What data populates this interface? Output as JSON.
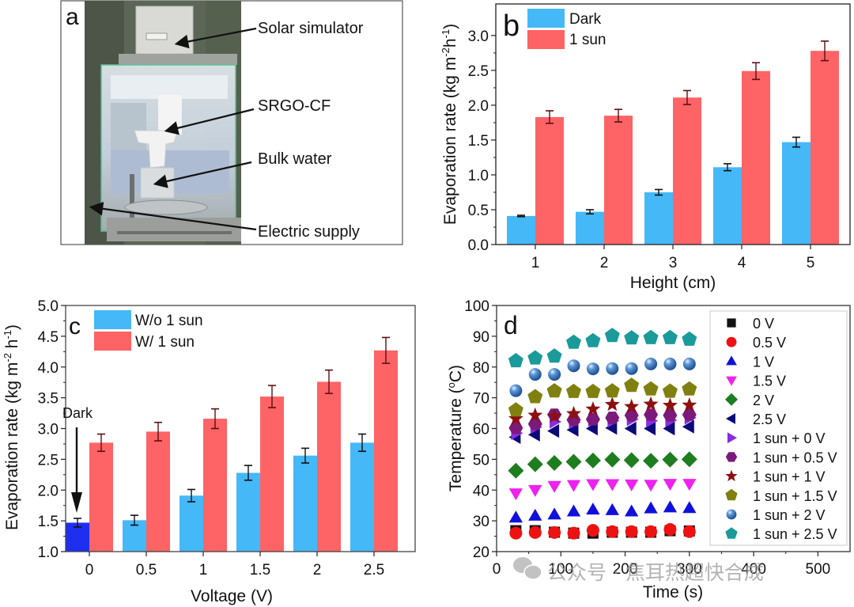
{
  "figure": {
    "watermark_text": "公众号 · 焦耳热超快合成",
    "watermark_icon": "wechat-icon"
  },
  "panel_a": {
    "panel_label": "a",
    "type": "photo",
    "annotations": [
      "Solar simulator",
      "SRGO-CF",
      "Bulk water",
      "Electric supply"
    ]
  },
  "chart_data": [
    {
      "panel_label": "b",
      "type": "bar",
      "title": "",
      "xlabel": "Height (cm)",
      "ylabel": "Evaporation rate (kg m⁻²h⁻¹)",
      "ylabel_parts": {
        "base": "Evaporation rate (kg m",
        "sup1": "-2",
        "mid": "h",
        "sup2": "-1",
        "end": ")"
      },
      "categories": [
        "1",
        "2",
        "3",
        "4",
        "5"
      ],
      "ylim": [
        0,
        3.2
      ],
      "yticks": [
        0.0,
        0.5,
        1.0,
        1.5,
        2.0,
        2.5,
        3.0
      ],
      "ytick_labels": [
        "0.0",
        "0.5",
        "1.0",
        "1.5",
        "2.0",
        "2.5",
        "3.0"
      ],
      "legend_position": "top-left",
      "grid": false,
      "series": [
        {
          "name": "Dark",
          "color": "#45b8f8",
          "values": [
            0.41,
            0.47,
            0.75,
            1.11,
            1.47
          ],
          "errors": [
            0.01,
            0.03,
            0.04,
            0.05,
            0.07
          ]
        },
        {
          "name": "1 sun",
          "color": "#fe6366",
          "values": [
            1.83,
            1.85,
            2.11,
            2.49,
            2.78
          ],
          "errors": [
            0.09,
            0.09,
            0.1,
            0.12,
            0.14
          ]
        }
      ]
    },
    {
      "panel_label": "c",
      "type": "bar",
      "title": "",
      "xlabel": "Voltage (V)",
      "ylabel": "Evaporation rate (kg m⁻² h⁻¹)",
      "ylabel_parts": {
        "base": "Evaporation rate (kg m",
        "sup1": "-2",
        "mid": " h",
        "sup2": "-1",
        "end": ")"
      },
      "categories": [
        "0",
        "0.5",
        "1",
        "1.5",
        "2",
        "2.5"
      ],
      "ylim": [
        1.0,
        5.0
      ],
      "yticks": [
        1.0,
        1.5,
        2.0,
        2.5,
        3.0,
        3.5,
        4.0,
        4.5,
        5.0
      ],
      "ytick_labels": [
        "1.0",
        "1.5",
        "2.0",
        "2.5",
        "3.0",
        "3.5",
        "4.0",
        "4.5",
        "5.0"
      ],
      "legend_position": "top-left",
      "grid": false,
      "annotation": {
        "text": "Dark",
        "points_to": "0",
        "highlight_color": "#1f2ff0"
      },
      "series": [
        {
          "name": "W/o 1 sun",
          "color": "#45b8f8",
          "values": [
            1.47,
            1.51,
            1.91,
            2.28,
            2.56,
            2.77
          ],
          "errors": [
            0.07,
            0.08,
            0.1,
            0.12,
            0.12,
            0.14
          ]
        },
        {
          "name": "W/ 1 sun",
          "color": "#fe6366",
          "values": [
            2.77,
            2.95,
            3.16,
            3.52,
            3.76,
            4.27
          ],
          "errors": [
            0.14,
            0.15,
            0.16,
            0.18,
            0.19,
            0.21
          ]
        }
      ]
    },
    {
      "panel_label": "d",
      "type": "scatter",
      "title": "",
      "xlabel": "Time (s)",
      "ylabel": "Temperature (°C)",
      "ylabel_parts": {
        "base": "Temperature (",
        "sup1": "o",
        "end": "C)"
      },
      "xlim": [
        0,
        550
      ],
      "ylim": [
        20,
        100
      ],
      "xticks": [
        0,
        100,
        200,
        300,
        400,
        500
      ],
      "xtick_labels": [
        "0",
        "100",
        "200",
        "300",
        "400",
        "500"
      ],
      "yticks": [
        20,
        30,
        40,
        50,
        60,
        70,
        80,
        90,
        100
      ],
      "ytick_labels": [
        "20",
        "30",
        "40",
        "50",
        "60",
        "70",
        "80",
        "90",
        "100"
      ],
      "legend_position": "right",
      "grid": false,
      "x": [
        30,
        60,
        90,
        120,
        150,
        180,
        210,
        240,
        270,
        300
      ],
      "series": [
        {
          "name": "0 V",
          "marker": "square",
          "color": "#111111",
          "values": [
            26.8,
            26.8,
            26.3,
            26.0,
            26.0,
            26.3,
            26.3,
            26.3,
            26.8,
            26.7
          ]
        },
        {
          "name": "0.5 V",
          "marker": "circle",
          "color": "#ee1111",
          "values": [
            26.0,
            26.2,
            26.2,
            26.0,
            26.9,
            26.5,
            26.5,
            26.5,
            27.2,
            26.5
          ]
        },
        {
          "name": "1 V",
          "marker": "triangle-up",
          "color": "#1010dd",
          "values": [
            31.0,
            31.6,
            32.0,
            33.0,
            33.6,
            33.4,
            33.0,
            34.0,
            34.3,
            34.1
          ]
        },
        {
          "name": "1.5 V",
          "marker": "triangle-down",
          "color": "#ee22ee",
          "values": [
            39.0,
            40.1,
            41.4,
            41.7,
            42.0,
            42.0,
            41.9,
            41.8,
            42.1,
            42.1
          ]
        },
        {
          "name": "2 V",
          "marker": "diamond",
          "color": "#1e7d1e",
          "values": [
            46.3,
            48.4,
            48.8,
            49.2,
            49.6,
            49.9,
            49.7,
            49.5,
            49.9,
            50.0
          ]
        },
        {
          "name": "2.5 V",
          "marker": "triangle-left",
          "color": "#0a0a7a",
          "values": [
            57.2,
            58.0,
            59.2,
            59.6,
            60.0,
            60.2,
            60.0,
            60.0,
            60.0,
            60.6
          ]
        },
        {
          "name": "1 sun + 0 V",
          "marker": "triangle-right",
          "color": "#8a2be2",
          "values": [
            58.5,
            60.5,
            62.2,
            62.0,
            62.8,
            62.5,
            63.0,
            62.5,
            62.7,
            63.5
          ]
        },
        {
          "name": "1 sun + 0.5 V",
          "marker": "hexagon",
          "color": "#7b1a7b",
          "values": [
            60.2,
            61.5,
            64.5,
            62.8,
            63.0,
            63.5,
            64.3,
            64.5,
            64.3,
            64.5
          ]
        },
        {
          "name": "1 sun + 1 V",
          "marker": "star",
          "color": "#8b1010",
          "values": [
            63.2,
            64.3,
            64.0,
            64.8,
            66.3,
            67.8,
            67.1,
            67.9,
            67.5,
            67.6
          ]
        },
        {
          "name": "1 sun + 1.5 V",
          "marker": "pentagon",
          "color": "#808010",
          "values": [
            66.0,
            70.3,
            72.2,
            72.0,
            72.0,
            72.2,
            74.0,
            72.8,
            72.1,
            72.8
          ]
        },
        {
          "name": "1 sun + 2 V",
          "marker": "sphere",
          "color": "#2f6fb5",
          "values": [
            72.3,
            77.6,
            77.6,
            80.4,
            79.4,
            79.5,
            79.5,
            81.0,
            81.0,
            81.0
          ]
        },
        {
          "name": "1 sun + 2.5 V",
          "marker": "pentagon",
          "color": "#1b9a9a",
          "values": [
            82.0,
            82.9,
            83.5,
            88.0,
            88.5,
            90.2,
            89.4,
            89.5,
            89.5,
            89.0
          ]
        }
      ]
    }
  ]
}
